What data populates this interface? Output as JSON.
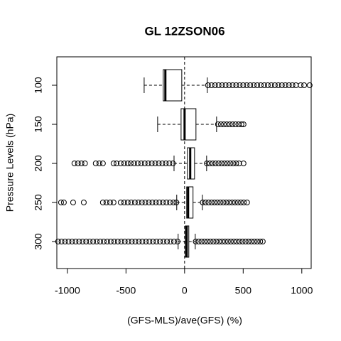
{
  "chart_data": {
    "type": "boxplot",
    "horizontal": true,
    "title": "GL 12ZSON06",
    "xlabel": "(GFS-MLS)/ave(GFS) (%)",
    "ylabel": "Pressure Levels (hPa)",
    "categories": [
      "100",
      "150",
      "200",
      "250",
      "300"
    ],
    "xlim": [
      -1090,
      1080
    ],
    "xticks": [
      -1000,
      -500,
      0,
      500,
      1000
    ],
    "reference_line": 0,
    "color": "#000000",
    "boxes": [
      {
        "whisker_low": -345,
        "q1": -182,
        "median": -164,
        "q3": -24,
        "whisker_high": 194,
        "outliers": [
          200,
          230,
          260,
          290,
          320,
          350,
          380,
          410,
          440,
          470,
          500,
          530,
          560,
          590,
          620,
          650,
          680,
          710,
          740,
          770,
          800,
          830,
          860,
          890,
          920,
          950,
          990,
          1020,
          1067
        ]
      },
      {
        "whisker_low": -230,
        "q1": -30,
        "median": 0,
        "q3": 97,
        "whisker_high": 273,
        "outliers": [
          285,
          310,
          335,
          360,
          385,
          410,
          435,
          460,
          485,
          503
        ]
      },
      {
        "whisker_low": -90,
        "q1": 24,
        "median": 48,
        "q3": 85,
        "whisker_high": 188,
        "outliers": [
          -940,
          -910,
          -880,
          -850,
          -758,
          -727,
          -697,
          -606,
          -580,
          -545,
          -515,
          -485,
          -460,
          -430,
          -400,
          -370,
          -340,
          -310,
          -280,
          -250,
          -220,
          -190,
          -160,
          -130,
          -100,
          190,
          215,
          240,
          265,
          290,
          315,
          340,
          365,
          390,
          415,
          440,
          465,
          503
        ]
      },
      {
        "whisker_low": -67,
        "q1": 18,
        "median": 30,
        "q3": 72,
        "whisker_high": 152,
        "outliers": [
          -1054,
          -1030,
          -951,
          -860,
          -697,
          -667,
          -636,
          -606,
          -545,
          -515,
          -485,
          -455,
          -424,
          -394,
          -364,
          -335,
          -305,
          -275,
          -245,
          -215,
          -185,
          -155,
          -125,
          -95,
          -70,
          155,
          180,
          205,
          230,
          255,
          280,
          305,
          330,
          355,
          380,
          405,
          430,
          455,
          480,
          505,
          533
        ]
      },
      {
        "whisker_low": -55,
        "q1": 6,
        "median": 18,
        "q3": 36,
        "whisker_high": 91,
        "outliers": [
          -1079,
          -1050,
          -1020,
          -990,
          -960,
          -930,
          -900,
          -870,
          -840,
          -810,
          -780,
          -750,
          -720,
          -690,
          -660,
          -630,
          -600,
          -570,
          -540,
          -510,
          -480,
          -450,
          -420,
          -390,
          -360,
          -330,
          -300,
          -270,
          -240,
          -210,
          -180,
          -150,
          -120,
          -90,
          -60,
          95,
          120,
          145,
          170,
          195,
          220,
          245,
          270,
          295,
          320,
          345,
          370,
          395,
          420,
          445,
          470,
          495,
          520,
          545,
          570,
          595,
          620,
          645,
          667
        ]
      }
    ]
  }
}
